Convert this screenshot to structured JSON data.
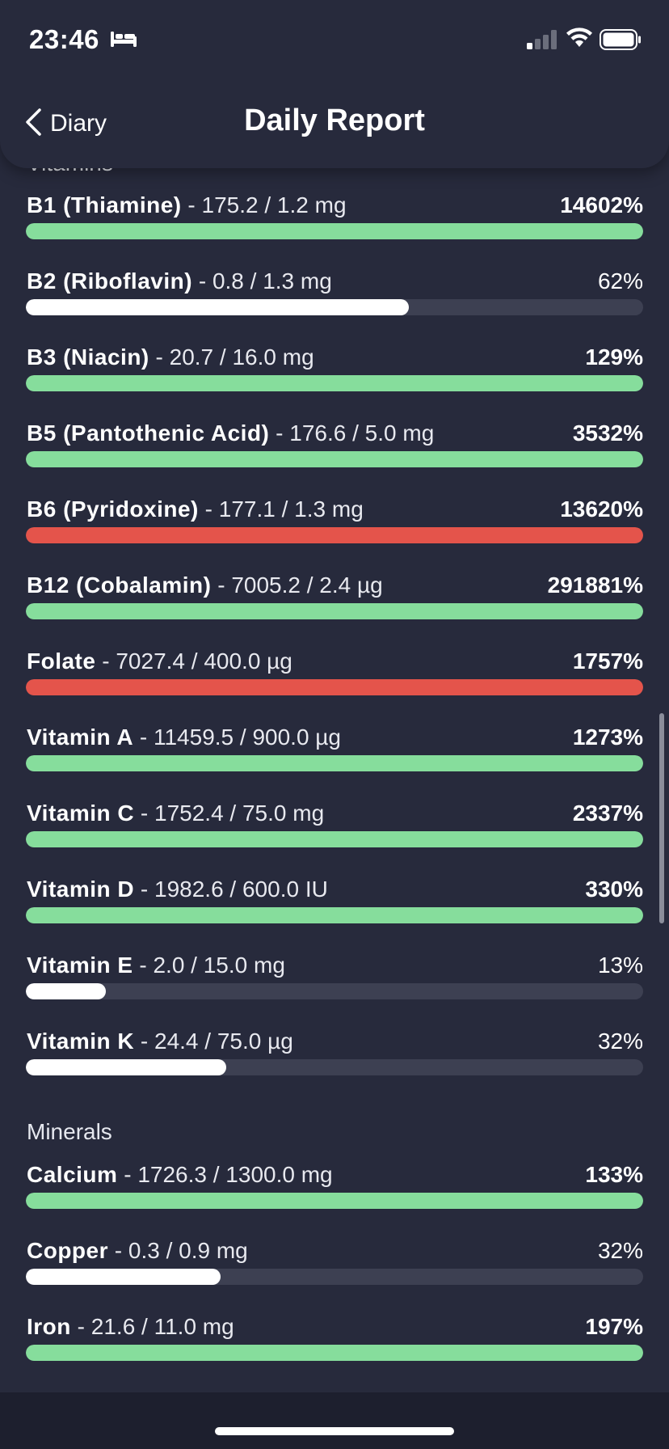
{
  "status_bar": {
    "time": "23:46"
  },
  "header": {
    "back_label": "Diary",
    "title": "Daily Report"
  },
  "sections": {
    "vitamins_heading": "Vitamins",
    "minerals_heading": "Minerals"
  },
  "colors": {
    "met": "#86dd9c",
    "over": "#e4544b",
    "under": "#ffffff",
    "track": "#3d4052"
  },
  "nutrients": [
    {
      "name": "B1 (Thiamine)",
      "detail": " - 175.2 / 1.2 mg",
      "percent": "14602%",
      "fill": 1.0,
      "status": "green"
    },
    {
      "name": "B2 (Riboflavin)",
      "detail": " - 0.8 / 1.3 mg",
      "percent": "62%",
      "fill": 0.62,
      "status": "under"
    },
    {
      "name": "B3 (Niacin)",
      "detail": " - 20.7 / 16.0 mg",
      "percent": "129%",
      "fill": 1.0,
      "status": "green"
    },
    {
      "name": "B5 (Pantothenic Acid)",
      "detail": " - 176.6 / 5.0 mg",
      "percent": "3532%",
      "fill": 1.0,
      "status": "green"
    },
    {
      "name": "B6 (Pyridoxine)",
      "detail": " - 177.1 / 1.3 mg",
      "percent": "13620%",
      "fill": 1.0,
      "status": "red"
    },
    {
      "name": "B12 (Cobalamin)",
      "detail": " - 7005.2 / 2.4 µg",
      "percent": "291881%",
      "fill": 1.0,
      "status": "green"
    },
    {
      "name": "Folate",
      "detail": " - 7027.4 / 400.0 µg",
      "percent": "1757%",
      "fill": 1.0,
      "status": "red"
    },
    {
      "name": "Vitamin A",
      "detail": " - 11459.5 / 900.0 µg",
      "percent": "1273%",
      "fill": 1.0,
      "status": "green"
    },
    {
      "name": "Vitamin C",
      "detail": " - 1752.4 / 75.0 mg",
      "percent": "2337%",
      "fill": 1.0,
      "status": "green"
    },
    {
      "name": "Vitamin D",
      "detail": " - 1982.6 / 600.0 IU",
      "percent": "330%",
      "fill": 1.0,
      "status": "green"
    },
    {
      "name": "Vitamin E",
      "detail": " - 2.0 / 15.0 mg",
      "percent": "13%",
      "fill": 0.13,
      "status": "under"
    },
    {
      "name": "Vitamin K",
      "detail": " - 24.4 / 75.0 µg",
      "percent": "32%",
      "fill": 0.325,
      "status": "under"
    }
  ],
  "minerals": [
    {
      "name": "Calcium",
      "detail": " - 1726.3 / 1300.0 mg",
      "percent": "133%",
      "fill": 1.0,
      "status": "green"
    },
    {
      "name": "Copper",
      "detail": " - 0.3 / 0.9 mg",
      "percent": "32%",
      "fill": 0.315,
      "status": "under"
    },
    {
      "name": "Iron",
      "detail": " - 21.6 / 11.0 mg",
      "percent": "197%",
      "fill": 1.0,
      "status": "green"
    }
  ]
}
